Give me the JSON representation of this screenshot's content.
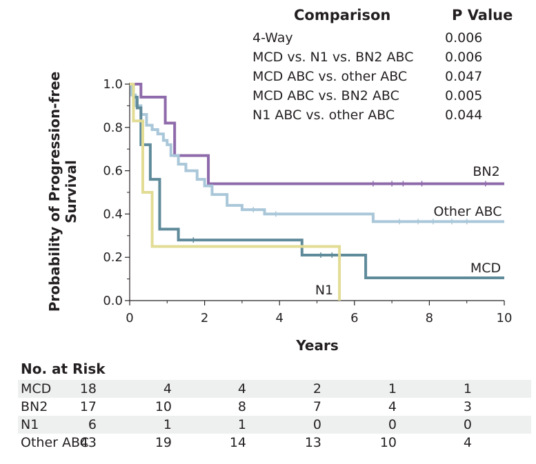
{
  "comparison": {
    "header_label": "Comparison",
    "header_p": "P Value",
    "rows": [
      {
        "label": "4-Way",
        "p": "0.006"
      },
      {
        "label": "MCD vs. N1 vs. BN2 ABC",
        "p": "0.006"
      },
      {
        "label": "MCD ABC vs. other ABC",
        "p": "0.047"
      },
      {
        "label": "MCD ABC vs. BN2 ABC",
        "p": "0.005"
      },
      {
        "label": "N1 ABC vs. other ABC",
        "p": "0.044"
      }
    ]
  },
  "chart_data": {
    "type": "line",
    "subtype": "kaplan-meier step",
    "title": "",
    "xlabel": "Years",
    "ylabel": "Probability of Progression-free Survival",
    "xlim": [
      0,
      10
    ],
    "ylim": [
      0,
      1.0
    ],
    "x_ticks": [
      "0",
      "2",
      "4",
      "6",
      "8",
      "10"
    ],
    "y_ticks": [
      "0.0",
      "0.2",
      "0.4",
      "0.6",
      "0.8",
      "1.0"
    ],
    "series": [
      {
        "name": "BN2",
        "label": "BN2",
        "color": "#8e6aaa",
        "steps": [
          [
            0,
            1.0
          ],
          [
            0.3,
            0.94
          ],
          [
            0.95,
            0.82
          ],
          [
            1.2,
            0.67
          ],
          [
            2.1,
            0.54
          ],
          [
            10,
            0.54
          ]
        ],
        "censor_x": [
          6.5,
          7.0,
          7.3,
          7.8,
          9.5
        ]
      },
      {
        "name": "Other ABC",
        "label": "Other ABC",
        "color": "#a9c7d9",
        "steps": [
          [
            0,
            1.0
          ],
          [
            0.05,
            0.95
          ],
          [
            0.15,
            0.9
          ],
          [
            0.3,
            0.86
          ],
          [
            0.45,
            0.81
          ],
          [
            0.6,
            0.79
          ],
          [
            0.75,
            0.77
          ],
          [
            0.9,
            0.74
          ],
          [
            1.0,
            0.72
          ],
          [
            1.1,
            0.67
          ],
          [
            1.3,
            0.63
          ],
          [
            1.5,
            0.6
          ],
          [
            1.8,
            0.56
          ],
          [
            2.0,
            0.53
          ],
          [
            2.2,
            0.49
          ],
          [
            2.6,
            0.44
          ],
          [
            3.0,
            0.42
          ],
          [
            3.6,
            0.4
          ],
          [
            6.5,
            0.365
          ],
          [
            10,
            0.365
          ]
        ],
        "censor_x": [
          3.3,
          3.9,
          7.2,
          7.7,
          8.1,
          8.6,
          9.0
        ]
      },
      {
        "name": "MCD",
        "label": "MCD",
        "color": "#5f8a9a",
        "steps": [
          [
            0,
            1.0
          ],
          [
            0.1,
            0.94
          ],
          [
            0.2,
            0.89
          ],
          [
            0.3,
            0.72
          ],
          [
            0.55,
            0.56
          ],
          [
            0.8,
            0.33
          ],
          [
            1.3,
            0.28
          ],
          [
            4.6,
            0.21
          ],
          [
            6.3,
            0.105
          ],
          [
            10,
            0.105
          ]
        ],
        "censor_x": [
          1.7,
          5.1,
          5.4
        ]
      },
      {
        "name": "N1",
        "label": "N1",
        "color": "#e2dc95",
        "steps": [
          [
            0,
            1.0
          ],
          [
            0.1,
            0.83
          ],
          [
            0.35,
            0.5
          ],
          [
            0.6,
            0.25
          ],
          [
            5.6,
            0.0
          ]
        ],
        "censor_x": []
      }
    ]
  },
  "risk_table": {
    "title": "No. at Risk",
    "rows": [
      {
        "label": "MCD",
        "values": [
          "18",
          "4",
          "4",
          "2",
          "1",
          "1"
        ]
      },
      {
        "label": "BN2",
        "values": [
          "17",
          "10",
          "8",
          "7",
          "4",
          "3"
        ]
      },
      {
        "label": "N1",
        "values": [
          "6",
          "1",
          "1",
          "0",
          "0",
          "0"
        ]
      },
      {
        "label": "Other ABC",
        "values": [
          "43",
          "19",
          "14",
          "13",
          "10",
          "4"
        ]
      }
    ]
  }
}
